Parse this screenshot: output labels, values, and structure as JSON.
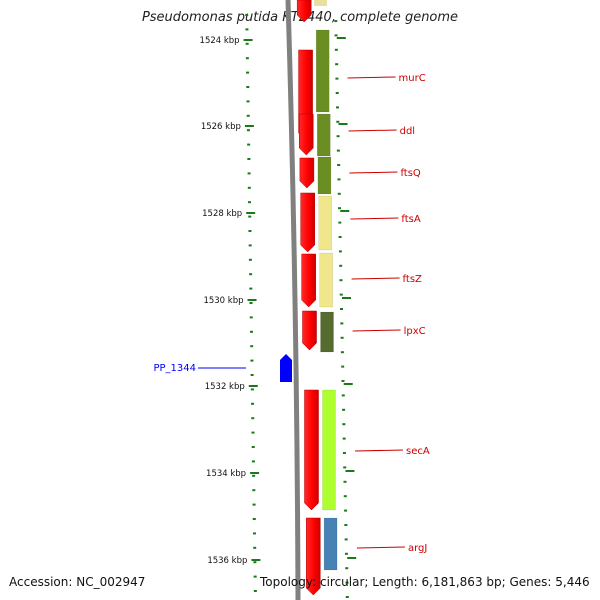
{
  "title": "Pseudomonas putida KT2440, complete genome",
  "footer": {
    "accession": "Accession: NC_002947",
    "summary": "Topology: circular; Length: 6,181,863 bp; Genes: 5,446"
  },
  "colors": {
    "backbone": "#808080",
    "tick": "#1a7a1a",
    "cds": "#ff0000",
    "gene_label": "#cc0000",
    "reverse_feature": "#0000ff"
  },
  "position_labels": [
    "1524 kbp",
    "1526 kbp",
    "1528 kbp",
    "1530 kbp",
    "1532 kbp",
    "1534 kbp",
    "1536 kbp"
  ],
  "genes": [
    {
      "name": "murC",
      "cog_color": "#6b8e23"
    },
    {
      "name": "ddl",
      "cog_color": "#6b8e23"
    },
    {
      "name": "ftsQ",
      "cog_color": "#6b8e23"
    },
    {
      "name": "ftsA",
      "cog_color": "#f0e68c"
    },
    {
      "name": "ftsZ",
      "cog_color": "#f0e68c"
    },
    {
      "name": "lpxC",
      "cog_color": "#556b2f"
    },
    {
      "name": "secA",
      "cog_color": "#adff2f"
    },
    {
      "name": "argJ",
      "cog_color": "#4682b4"
    }
  ],
  "reverse_genes": [
    {
      "name": "PP_1344"
    }
  ]
}
